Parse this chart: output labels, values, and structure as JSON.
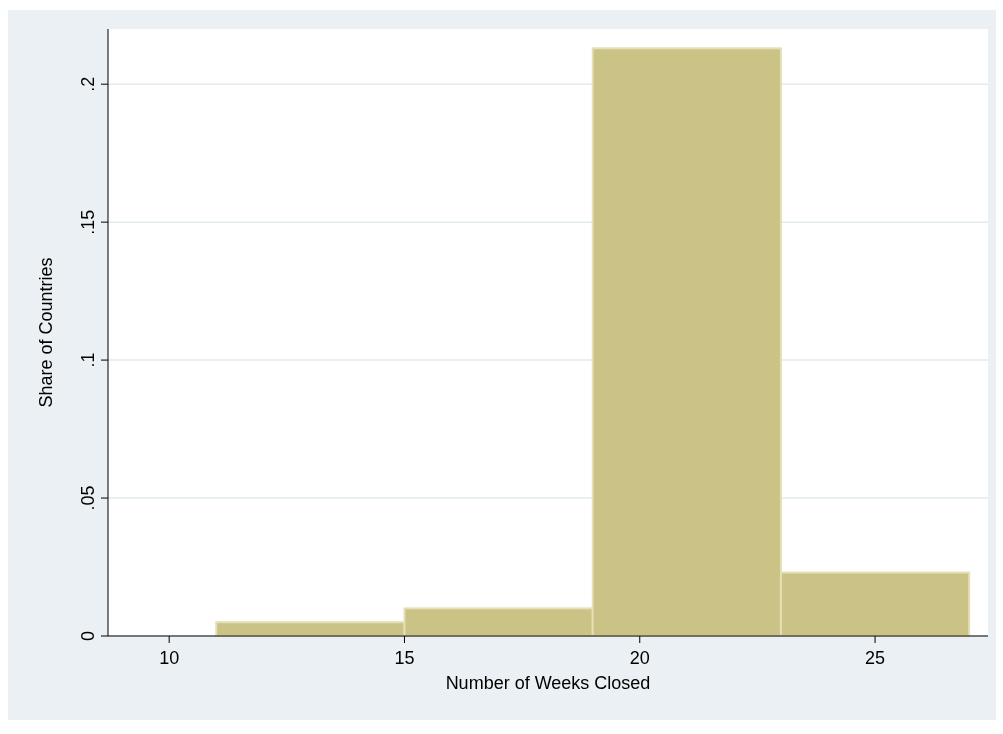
{
  "chart_data": {
    "type": "histogram",
    "xlabel": "Number of Weeks Closed",
    "ylabel": "Share of Countries",
    "bins": [
      11,
      15,
      19,
      23,
      27
    ],
    "values": [
      0.005,
      0.01,
      0.213,
      0.023
    ],
    "color": "#cbc385",
    "xlim": [
      8.7,
      27.4
    ],
    "xticks": [
      10,
      15,
      20,
      25
    ],
    "ylim": [
      0,
      0.22
    ],
    "yticks": [
      {
        "value": 0,
        "label": "0"
      },
      {
        "value": 0.05,
        "label": ".05"
      },
      {
        "value": 0.1,
        "label": ".1"
      },
      {
        "value": 0.15,
        "label": ".15"
      },
      {
        "value": 0.2,
        "label": ".2"
      }
    ],
    "grid": "y"
  }
}
